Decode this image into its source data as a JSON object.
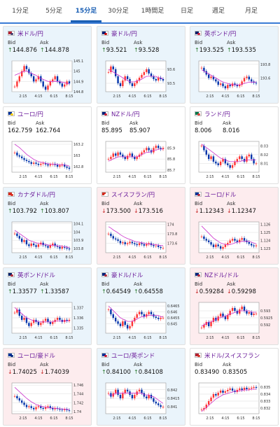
{
  "tabs": [
    "1分足",
    "5分足",
    "15分足",
    "30分足",
    "1時間足",
    "日足",
    "週足",
    "月足"
  ],
  "active_tab": 2,
  "labels": {
    "bid": "Bid",
    "ask": "Ask"
  },
  "x_ticks": [
    "2:15",
    "4:15",
    "6:15",
    "8:15"
  ],
  "colors": {
    "up_bg": "#eaf4fb",
    "down_bg": "#fdecee",
    "up_arrow": "#2e7d32",
    "down_arrow": "#c62828",
    "title": "#6a1b9a",
    "ma_line": "#cc33cc",
    "candle_up": "#ff3333",
    "candle_down": "#0033aa"
  },
  "cards": [
    {
      "name": "米ドル/円",
      "trend": "up",
      "bid": "144.876",
      "ask": "144.878",
      "arrow": "up",
      "flag": "us",
      "y_ticks": [
        "145.1",
        "145",
        "144.9",
        "144.8"
      ],
      "series": [
        144.85,
        144.9,
        144.95,
        145.0,
        145.05,
        145.02,
        144.98,
        144.95,
        144.9,
        144.92,
        144.95,
        144.9,
        144.85,
        144.82,
        144.86,
        144.9,
        144.92,
        144.95,
        144.9,
        144.88,
        144.85,
        144.87,
        144.9,
        144.88
      ],
      "ylim": [
        144.8,
        145.1
      ],
      "ma": [
        144.96,
        144.97,
        144.98,
        144.99,
        145.0,
        145.0,
        144.99,
        144.98,
        144.97,
        144.96,
        144.94,
        144.93,
        144.92,
        144.91,
        144.9,
        144.9,
        144.9,
        144.9,
        144.9,
        144.9,
        144.89,
        144.89,
        144.88,
        144.88
      ]
    },
    {
      "name": "豪ドル/円",
      "trend": "up",
      "bid": "93.521",
      "ask": "93.528",
      "arrow": "up",
      "flag": "au",
      "y_ticks": [
        "93.6",
        "93.5"
      ],
      "series": [
        93.58,
        93.62,
        93.6,
        93.55,
        93.5,
        93.48,
        93.52,
        93.55,
        93.53,
        93.5,
        93.48,
        93.5,
        93.52,
        93.54,
        93.56,
        93.58,
        93.6,
        93.57,
        93.55,
        93.53,
        93.52,
        93.54,
        93.53,
        93.52
      ],
      "ylim": [
        93.44,
        93.66
      ],
      "ma": [
        93.6,
        93.59,
        93.58,
        93.57,
        93.56,
        93.55,
        93.54,
        93.53,
        93.52,
        93.51,
        93.51,
        93.51,
        93.52,
        93.52,
        93.53,
        93.54,
        93.55,
        93.55,
        93.55,
        93.55,
        93.55,
        93.54,
        93.54,
        93.53
      ]
    },
    {
      "name": "英ポンド/円",
      "trend": "up",
      "bid": "193.525",
      "ask": "193.535",
      "arrow": "up",
      "flag": "uk",
      "y_ticks": [
        "193.8",
        "193.6"
      ],
      "series": [
        193.75,
        193.7,
        193.65,
        193.6,
        193.62,
        193.58,
        193.55,
        193.5,
        193.52,
        193.48,
        193.45,
        193.5,
        193.48,
        193.52,
        193.5,
        193.48,
        193.5,
        193.55,
        193.6,
        193.62,
        193.58,
        193.55,
        193.53,
        193.52
      ],
      "ylim": [
        193.4,
        193.85
      ],
      "ma": [
        193.72,
        193.7,
        193.68,
        193.66,
        193.64,
        193.62,
        193.6,
        193.58,
        193.56,
        193.54,
        193.53,
        193.52,
        193.51,
        193.5,
        193.5,
        193.5,
        193.5,
        193.51,
        193.52,
        193.53,
        193.54,
        193.54,
        193.54,
        193.54
      ]
    },
    {
      "name": "ユーロ/円",
      "trend": "flat",
      "bid": "162.759",
      "ask": "162.764",
      "arrow": "none",
      "flag": "eu",
      "y_ticks": [
        "163.2",
        "163",
        "162.8"
      ],
      "series": [
        163.05,
        163.0,
        162.98,
        162.95,
        162.92,
        162.9,
        162.88,
        162.85,
        162.87,
        162.85,
        162.83,
        162.85,
        162.86,
        162.84,
        162.82,
        162.84,
        162.85,
        162.83,
        162.8,
        162.82,
        162.84,
        162.8,
        162.78,
        162.76
      ],
      "ylim": [
        162.7,
        163.25
      ],
      "ma": [
        163.2,
        163.17,
        163.14,
        163.1,
        163.06,
        163.02,
        162.99,
        162.96,
        162.93,
        162.91,
        162.89,
        162.88,
        162.87,
        162.86,
        162.85,
        162.85,
        162.84,
        162.84,
        162.84,
        162.83,
        162.83,
        162.83,
        162.82,
        162.81
      ]
    },
    {
      "name": "NZドル/円",
      "trend": "flat",
      "bid": "85.895",
      "ask": "85.907",
      "arrow": "none",
      "flag": "nz",
      "y_ticks": [
        "85.9",
        "85.8",
        "85.7"
      ],
      "series": [
        85.8,
        85.82,
        85.85,
        85.83,
        85.86,
        85.84,
        85.82,
        85.8,
        85.83,
        85.85,
        85.82,
        85.8,
        85.82,
        85.84,
        85.86,
        85.88,
        85.9,
        85.88,
        85.86,
        85.9,
        85.92,
        85.9,
        85.89,
        85.9
      ],
      "ylim": [
        85.68,
        85.96
      ],
      "ma": [
        85.78,
        85.79,
        85.8,
        85.81,
        85.82,
        85.82,
        85.82,
        85.82,
        85.82,
        85.82,
        85.82,
        85.82,
        85.82,
        85.83,
        85.84,
        85.85,
        85.86,
        85.86,
        85.87,
        85.88,
        85.88,
        85.89,
        85.89,
        85.89
      ]
    },
    {
      "name": "ランド/円",
      "trend": "flat",
      "bid": "8.006",
      "ask": "8.016",
      "arrow": "none",
      "flag": "za",
      "y_ticks": [
        "8.03",
        "8.02",
        "8.01"
      ],
      "series": [
        8.03,
        8.025,
        8.02,
        8.015,
        8.018,
        8.012,
        8.01,
        8.008,
        8.012,
        8.015,
        8.01,
        8.008,
        8.005,
        8.008,
        8.012,
        8.015,
        8.018,
        8.015,
        8.012,
        8.018,
        8.02,
        8.015,
        8.01,
        8.01
      ],
      "ylim": [
        8.0,
        8.035
      ],
      "ma": [
        8.032,
        8.03,
        8.028,
        8.026,
        8.024,
        8.022,
        8.02,
        8.018,
        8.016,
        8.015,
        8.014,
        8.013,
        8.012,
        8.012,
        8.012,
        8.012,
        8.012,
        8.013,
        8.013,
        8.014,
        8.014,
        8.014,
        8.014,
        8.014
      ]
    },
    {
      "name": "カナダドル/円",
      "trend": "up",
      "bid": "103.792",
      "ask": "103.807",
      "arrow": "up",
      "flag": "ca",
      "y_ticks": [
        "104.1",
        "104",
        "103.9",
        "103.8"
      ],
      "series": [
        103.98,
        103.95,
        103.92,
        103.88,
        103.9,
        103.85,
        103.83,
        103.86,
        103.84,
        103.82,
        103.85,
        103.87,
        103.84,
        103.83,
        103.81,
        103.84,
        103.86,
        103.83,
        103.82,
        103.8,
        103.82,
        103.81,
        103.8,
        103.79
      ],
      "ylim": [
        103.75,
        104.12
      ],
      "ma": [
        104.02,
        104.0,
        103.98,
        103.96,
        103.94,
        103.92,
        103.9,
        103.89,
        103.88,
        103.87,
        103.86,
        103.86,
        103.85,
        103.85,
        103.84,
        103.84,
        103.84,
        103.84,
        103.83,
        103.83,
        103.83,
        103.82,
        103.82,
        103.81
      ]
    },
    {
      "name": "スイスフラン/円",
      "trend": "down",
      "bid": "173.500",
      "ask": "173.516",
      "arrow": "down",
      "flag": "ch",
      "y_ticks": [
        "174",
        "173.8",
        "173.6"
      ],
      "series": [
        173.8,
        173.75,
        173.7,
        173.68,
        173.65,
        173.6,
        173.62,
        173.58,
        173.6,
        173.63,
        173.6,
        173.58,
        173.56,
        173.6,
        173.58,
        173.55,
        173.58,
        173.6,
        173.56,
        173.54,
        173.55,
        173.52,
        173.5,
        173.5
      ],
      "ylim": [
        173.4,
        174.05
      ],
      "ma": [
        173.95,
        173.92,
        173.88,
        173.85,
        173.82,
        173.78,
        173.75,
        173.72,
        173.7,
        173.68,
        173.66,
        173.64,
        173.63,
        173.62,
        173.61,
        173.6,
        173.59,
        173.58,
        173.58,
        173.57,
        173.57,
        173.56,
        173.55,
        173.55
      ]
    },
    {
      "name": "ユーロ/ドル",
      "trend": "down",
      "bid": "1.12343",
      "ask": "1.12347",
      "arrow": "down",
      "flag": "eu_us",
      "y_ticks": [
        "1.126",
        "1.125",
        "1.124",
        "1.123"
      ],
      "series": [
        1.1245,
        1.1242,
        1.124,
        1.1238,
        1.1235,
        1.1232,
        1.1235,
        1.1233,
        1.123,
        1.1232,
        1.1235,
        1.1237,
        1.124,
        1.1242,
        1.124,
        1.1238,
        1.1241,
        1.1243,
        1.124,
        1.1238,
        1.1236,
        1.1234,
        1.1233,
        1.1234
      ],
      "ylim": [
        1.1225,
        1.1263
      ],
      "ma": [
        1.1258,
        1.1255,
        1.1252,
        1.1249,
        1.1246,
        1.1243,
        1.1241,
        1.1239,
        1.1237,
        1.1236,
        1.1235,
        1.1235,
        1.1235,
        1.1236,
        1.1237,
        1.1238,
        1.1238,
        1.1239,
        1.1239,
        1.1239,
        1.1239,
        1.1238,
        1.1237,
        1.1236
      ]
    },
    {
      "name": "英ポンド/ドル",
      "trend": "up",
      "bid": "1.33577",
      "ask": "1.33587",
      "arrow": "up",
      "flag": "uk_us",
      "y_ticks": [
        "1.337",
        "1.336",
        "1.335"
      ],
      "series": [
        1.3365,
        1.3368,
        1.3362,
        1.3358,
        1.336,
        1.3355,
        1.3352,
        1.3355,
        1.3358,
        1.3356,
        1.3353,
        1.3355,
        1.3357,
        1.3359,
        1.3356,
        1.3354,
        1.3356,
        1.3358,
        1.336,
        1.3358,
        1.3356,
        1.3358,
        1.3357,
        1.3358
      ],
      "ylim": [
        1.3345,
        1.3375
      ],
      "ma": [
        1.337,
        1.3368,
        1.3366,
        1.3364,
        1.3362,
        1.336,
        1.3359,
        1.3358,
        1.3357,
        1.3357,
        1.3356,
        1.3356,
        1.3356,
        1.3356,
        1.3356,
        1.3356,
        1.3356,
        1.3357,
        1.3357,
        1.3357,
        1.3357,
        1.3357,
        1.3357,
        1.3357
      ]
    },
    {
      "name": "豪ドル/ドル",
      "trend": "up",
      "bid": "0.64549",
      "ask": "0.64558",
      "arrow": "up",
      "flag": "au_us",
      "y_ticks": [
        "0.6465",
        "0.646",
        "0.6455",
        "0.645"
      ],
      "series": [
        0.6462,
        0.6458,
        0.6455,
        0.6452,
        0.645,
        0.6448,
        0.6452,
        0.6449,
        0.6446,
        0.6448,
        0.6452,
        0.6455,
        0.6458,
        0.646,
        0.6458,
        0.6456,
        0.6458,
        0.646,
        0.6458,
        0.6456,
        0.6455,
        0.6454,
        0.6455,
        0.6455
      ],
      "ylim": [
        0.6442,
        0.6468
      ],
      "ma": [
        0.6465,
        0.6463,
        0.6461,
        0.6459,
        0.6457,
        0.6455,
        0.6454,
        0.6453,
        0.6452,
        0.6452,
        0.6452,
        0.6453,
        0.6454,
        0.6455,
        0.6456,
        0.6456,
        0.6457,
        0.6457,
        0.6457,
        0.6457,
        0.6457,
        0.6457,
        0.6456,
        0.6456
      ]
    },
    {
      "name": "NZドル/ドル",
      "trend": "down",
      "bid": "0.59284",
      "ask": "0.59298",
      "arrow": "down",
      "flag": "nz_us",
      "y_ticks": [
        "0.593",
        "0.5925",
        "0.592"
      ],
      "series": [
        0.5918,
        0.592,
        0.5922,
        0.5919,
        0.5922,
        0.5925,
        0.5923,
        0.5926,
        0.5928,
        0.5926,
        0.5924,
        0.5927,
        0.593,
        0.5932,
        0.593,
        0.5928,
        0.5931,
        0.5933,
        0.593,
        0.5928,
        0.5929,
        0.5927,
        0.5928,
        0.5928
      ],
      "ylim": [
        0.5914,
        0.5936
      ],
      "ma": [
        0.5919,
        0.592,
        0.5921,
        0.5922,
        0.5922,
        0.5923,
        0.5924,
        0.5925,
        0.5925,
        0.5926,
        0.5926,
        0.5927,
        0.5928,
        0.5928,
        0.5929,
        0.5929,
        0.593,
        0.593,
        0.593,
        0.593,
        0.593,
        0.5929,
        0.5929,
        0.5929
      ]
    },
    {
      "name": "ユーロ/豪ドル",
      "trend": "down",
      "bid": "1.74025",
      "ask": "1.74039",
      "arrow": "down",
      "flag": "eu_au",
      "y_ticks": [
        "1.746",
        "1.744",
        "1.742",
        "1.74"
      ],
      "series": [
        1.7435,
        1.743,
        1.7425,
        1.742,
        1.7415,
        1.741,
        1.7412,
        1.7408,
        1.7405,
        1.741,
        1.7412,
        1.7408,
        1.7406,
        1.741,
        1.7412,
        1.7408,
        1.7405,
        1.7408,
        1.7406,
        1.7404,
        1.7403,
        1.7405,
        1.7403,
        1.7402
      ],
      "ylim": [
        1.7395,
        1.7465
      ],
      "ma": [
        1.7455,
        1.745,
        1.7445,
        1.744,
        1.7435,
        1.743,
        1.7426,
        1.7422,
        1.7419,
        1.7416,
        1.7414,
        1.7412,
        1.7411,
        1.741,
        1.7409,
        1.7408,
        1.7408,
        1.7407,
        1.7407,
        1.7406,
        1.7406,
        1.7405,
        1.7405,
        1.7404
      ]
    },
    {
      "name": "ユーロ/英ポンド",
      "trend": "up",
      "bid": "0.84100",
      "ask": "0.84108",
      "arrow": "up",
      "flag": "eu_uk",
      "y_ticks": [
        "0.842",
        "0.8415",
        "0.841"
      ],
      "series": [
        0.8418,
        0.8416,
        0.8418,
        0.842,
        0.8417,
        0.8415,
        0.8418,
        0.842,
        0.8419,
        0.8417,
        0.8415,
        0.8417,
        0.8419,
        0.842,
        0.8418,
        0.8416,
        0.8415,
        0.8417,
        0.8415,
        0.8413,
        0.8412,
        0.8411,
        0.841,
        0.841
      ],
      "ylim": [
        0.8406,
        0.8424
      ],
      "ma": [
        0.8417,
        0.8417,
        0.8417,
        0.8418,
        0.8418,
        0.8418,
        0.8418,
        0.8418,
        0.8418,
        0.8418,
        0.8418,
        0.8418,
        0.8418,
        0.8418,
        0.8418,
        0.8417,
        0.8417,
        0.8417,
        0.8416,
        0.8416,
        0.8415,
        0.8414,
        0.8413,
        0.8412
      ]
    },
    {
      "name": "米ドル/スイスフラン",
      "trend": "flat",
      "bid": "0.83490",
      "ask": "0.83505",
      "arrow": "none",
      "flag": "us_ch",
      "y_ticks": [
        "0.835",
        "0.834",
        "0.833",
        "0.832"
      ],
      "series": [
        0.8318,
        0.832,
        0.8325,
        0.833,
        0.8335,
        0.834,
        0.8338,
        0.8342,
        0.8345,
        0.8342,
        0.8344,
        0.8346,
        0.8348,
        0.8345,
        0.8343,
        0.8346,
        0.8348,
        0.8346,
        0.8349,
        0.8347,
        0.8348,
        0.8349,
        0.835,
        0.8349
      ],
      "ylim": [
        0.8312,
        0.8356
      ],
      "ma": [
        0.8315,
        0.8318,
        0.8321,
        0.8324,
        0.8327,
        0.833,
        0.8333,
        0.8335,
        0.8337,
        0.8339,
        0.834,
        0.8341,
        0.8342,
        0.8343,
        0.8344,
        0.8344,
        0.8345,
        0.8345,
        0.8346,
        0.8346,
        0.8346,
        0.8347,
        0.8347,
        0.8347
      ]
    }
  ]
}
